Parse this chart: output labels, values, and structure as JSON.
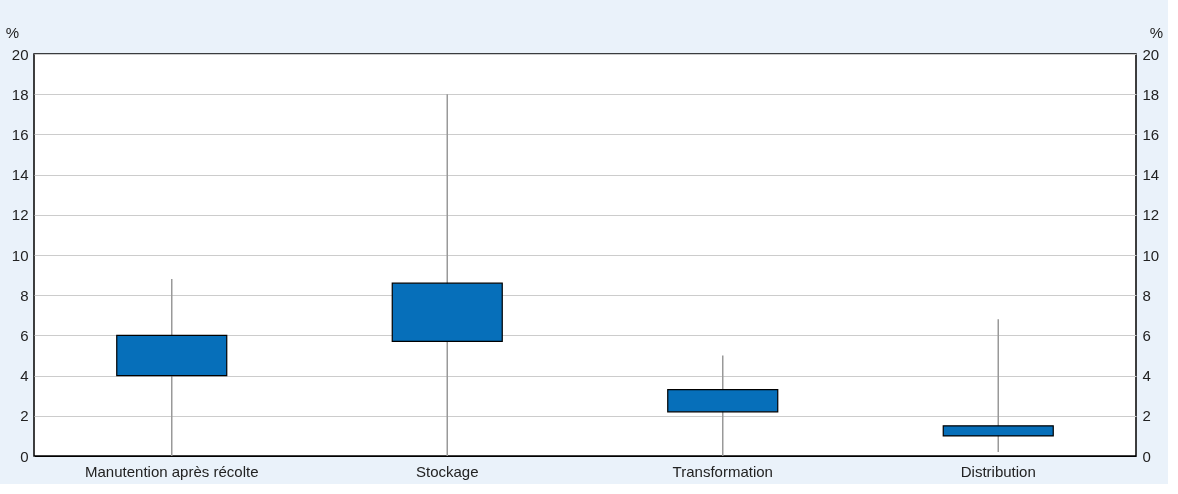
{
  "chart_data": {
    "type": "box",
    "categories": [
      "Manutention après récolte",
      "Stockage",
      "Transformation",
      "Distribution"
    ],
    "boxes": [
      {
        "low": 0,
        "q1": 4.0,
        "q3": 6.0,
        "high": 8.8
      },
      {
        "low": 0,
        "q1": 5.7,
        "q3": 8.6,
        "high": 18
      },
      {
        "low": 0,
        "q1": 2.2,
        "q3": 3.3,
        "high": 5.0
      },
      {
        "low": 0.2,
        "q1": 1.0,
        "q3": 1.5,
        "high": 6.8
      }
    ],
    "color": "#066fba",
    "ylabel": "%",
    "y2label": "%",
    "ylim": [
      0,
      20
    ],
    "yticks": [
      0,
      2,
      4,
      6,
      8,
      10,
      12,
      14,
      16,
      18,
      20
    ],
    "y2lim": [
      0,
      20
    ],
    "y2ticks": [
      0,
      2,
      4,
      6,
      8,
      10,
      12,
      14,
      16,
      18,
      20
    ],
    "grid": "y"
  }
}
